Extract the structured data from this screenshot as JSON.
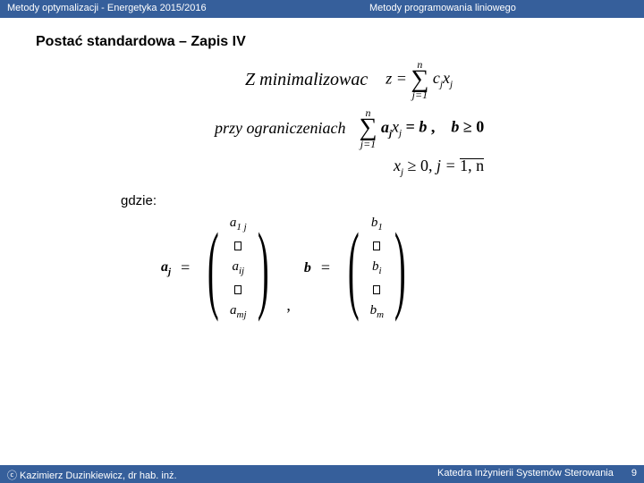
{
  "header": {
    "left": "Metody optymalizacji  -  Energetyka  2015/2016",
    "right": "Metody programowania liniowego"
  },
  "title": "Postać standardowa – Zapis IV",
  "formula": {
    "minimize_label": "Z minimalizowac",
    "z_eq": "z =",
    "sum1_top": "n",
    "sum1_bottom": "j=1",
    "sum1_term_c": "c",
    "sum1_term_sub1": "j",
    "sum1_term_x": "x",
    "sum1_term_sub2": "j",
    "constraints_label": "przy ograniczeniach",
    "sum2_top": "n",
    "sum2_bottom": "j=1",
    "sum2_a": "a",
    "sum2_asub": "j",
    "sum2_x": "x",
    "sum2_xsub": "j",
    "eq_b": "= b ,",
    "b_geq": "b ≥ 0",
    "nonneg": "x",
    "nonneg_sub": "j",
    "nonneg_rest": " ≥ 0, j = ",
    "range": "1, n"
  },
  "gdzie": "gdzie:",
  "vectors": {
    "aj_label": "a",
    "aj_sub": "j",
    "a_top": "a",
    "a_top_sub": "1 j",
    "a_mid": "a",
    "a_mid_sub": "ij",
    "a_bot": "a",
    "a_bot_sub": "mj",
    "b_label": "b",
    "b_top": "b",
    "b_top_sub": "1",
    "b_mid": "b",
    "b_mid_sub": "i",
    "b_bot": "b",
    "b_bot_sub": "m"
  },
  "footer": {
    "left": "ⓒ  Kazimierz Duzinkiewicz, dr hab. inż.",
    "right": "Katedra Inżynierii Systemów Sterowania",
    "page": "9"
  },
  "colors": {
    "header_bg": "#365f9b",
    "text": "#000000"
  }
}
